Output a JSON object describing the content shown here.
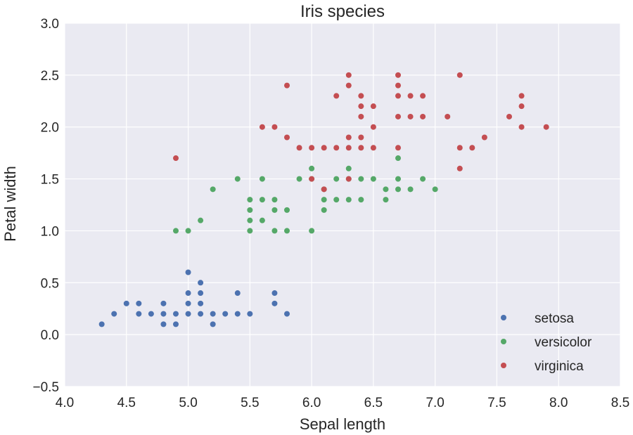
{
  "chart_data": {
    "type": "scatter",
    "title": "Iris species",
    "xlabel": "Sepal length",
    "ylabel": "Petal width",
    "xlim": [
      4.0,
      8.5
    ],
    "ylim": [
      -0.5,
      3.0
    ],
    "x_ticks": [
      "4.0",
      "4.5",
      "5.0",
      "5.5",
      "6.0",
      "6.5",
      "7.0",
      "7.5",
      "8.0",
      "8.5"
    ],
    "y_ticks": [
      "−0.5",
      "0.0",
      "0.5",
      "1.0",
      "1.5",
      "2.0",
      "2.5",
      "3.0"
    ],
    "grid": true,
    "legend_position": "bottom-right",
    "background": "#eaeaf2",
    "series": [
      {
        "name": "setosa",
        "color": "#4c72b0",
        "points": [
          [
            4.3,
            0.1
          ],
          [
            4.4,
            0.2
          ],
          [
            4.5,
            0.3
          ],
          [
            4.6,
            0.2
          ],
          [
            4.6,
            0.3
          ],
          [
            4.7,
            0.2
          ],
          [
            4.8,
            0.1
          ],
          [
            4.8,
            0.2
          ],
          [
            4.8,
            0.3
          ],
          [
            4.9,
            0.1
          ],
          [
            4.9,
            0.2
          ],
          [
            5.0,
            0.2
          ],
          [
            5.0,
            0.3
          ],
          [
            5.0,
            0.4
          ],
          [
            5.0,
            0.6
          ],
          [
            5.1,
            0.2
          ],
          [
            5.1,
            0.3
          ],
          [
            5.1,
            0.4
          ],
          [
            5.1,
            0.5
          ],
          [
            5.2,
            0.1
          ],
          [
            5.2,
            0.2
          ],
          [
            5.3,
            0.2
          ],
          [
            5.4,
            0.2
          ],
          [
            5.4,
            0.4
          ],
          [
            5.5,
            0.2
          ],
          [
            5.7,
            0.3
          ],
          [
            5.7,
            0.4
          ],
          [
            5.8,
            0.2
          ]
        ]
      },
      {
        "name": "versicolor",
        "color": "#55a868",
        "points": [
          [
            4.9,
            1.0
          ],
          [
            5.0,
            1.0
          ],
          [
            5.1,
            1.1
          ],
          [
            5.2,
            1.4
          ],
          [
            5.4,
            1.5
          ],
          [
            5.5,
            1.0
          ],
          [
            5.5,
            1.1
          ],
          [
            5.5,
            1.2
          ],
          [
            5.5,
            1.3
          ],
          [
            5.6,
            1.1
          ],
          [
            5.6,
            1.3
          ],
          [
            5.6,
            1.5
          ],
          [
            5.7,
            1.0
          ],
          [
            5.7,
            1.2
          ],
          [
            5.7,
            1.3
          ],
          [
            5.8,
            1.0
          ],
          [
            5.8,
            1.2
          ],
          [
            5.9,
            1.5
          ],
          [
            6.0,
            1.0
          ],
          [
            6.0,
            1.5
          ],
          [
            6.0,
            1.6
          ],
          [
            6.1,
            1.2
          ],
          [
            6.1,
            1.3
          ],
          [
            6.1,
            1.4
          ],
          [
            6.2,
            1.3
          ],
          [
            6.2,
            1.5
          ],
          [
            6.3,
            1.3
          ],
          [
            6.3,
            1.5
          ],
          [
            6.3,
            1.6
          ],
          [
            6.4,
            1.3
          ],
          [
            6.4,
            1.5
          ],
          [
            6.5,
            1.5
          ],
          [
            6.6,
            1.3
          ],
          [
            6.6,
            1.4
          ],
          [
            6.7,
            1.4
          ],
          [
            6.7,
            1.5
          ],
          [
            6.7,
            1.7
          ],
          [
            6.8,
            1.4
          ],
          [
            6.9,
            1.5
          ],
          [
            7.0,
            1.4
          ]
        ]
      },
      {
        "name": "virginica",
        "color": "#c44e52",
        "points": [
          [
            4.9,
            1.7
          ],
          [
            5.6,
            2.0
          ],
          [
            5.7,
            2.0
          ],
          [
            5.8,
            1.9
          ],
          [
            5.8,
            2.4
          ],
          [
            5.9,
            1.8
          ],
          [
            6.0,
            1.5
          ],
          [
            6.0,
            1.8
          ],
          [
            6.1,
            1.4
          ],
          [
            6.1,
            1.8
          ],
          [
            6.2,
            1.8
          ],
          [
            6.2,
            2.3
          ],
          [
            6.3,
            1.5
          ],
          [
            6.3,
            1.8
          ],
          [
            6.3,
            1.9
          ],
          [
            6.3,
            2.4
          ],
          [
            6.3,
            2.5
          ],
          [
            6.4,
            1.8
          ],
          [
            6.4,
            1.9
          ],
          [
            6.4,
            2.1
          ],
          [
            6.4,
            2.2
          ],
          [
            6.4,
            2.3
          ],
          [
            6.5,
            1.8
          ],
          [
            6.5,
            2.0
          ],
          [
            6.5,
            2.2
          ],
          [
            6.7,
            1.8
          ],
          [
            6.7,
            2.1
          ],
          [
            6.7,
            2.3
          ],
          [
            6.7,
            2.4
          ],
          [
            6.7,
            2.5
          ],
          [
            6.8,
            2.1
          ],
          [
            6.8,
            2.3
          ],
          [
            6.9,
            2.1
          ],
          [
            6.9,
            2.3
          ],
          [
            7.1,
            2.1
          ],
          [
            7.2,
            1.6
          ],
          [
            7.2,
            1.8
          ],
          [
            7.2,
            2.5
          ],
          [
            7.3,
            1.8
          ],
          [
            7.4,
            1.9
          ],
          [
            7.6,
            2.1
          ],
          [
            7.7,
            2.0
          ],
          [
            7.7,
            2.2
          ],
          [
            7.7,
            2.3
          ],
          [
            7.9,
            2.0
          ]
        ]
      }
    ]
  }
}
